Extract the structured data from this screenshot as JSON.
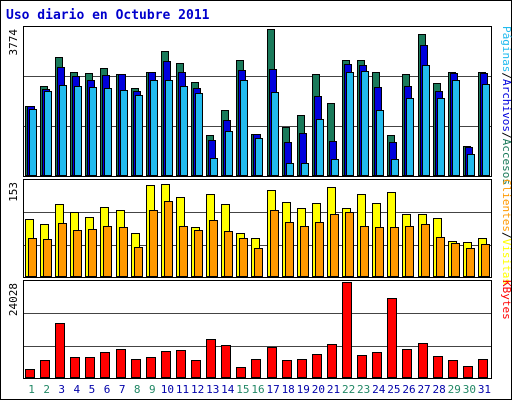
{
  "chart_data": {
    "type": "bar",
    "title": "Uso diario en Octubre 2011",
    "colors": {
      "title": "#0000cc",
      "accesos": "#1a7a5a",
      "archivos": "#0000dd",
      "paginas": "#22bbee",
      "visitas": "#ffff00",
      "clientes": "#ff9900",
      "kbytes": "#ff0000",
      "weekend_label": "#228866",
      "weekday_label": "#0000aa",
      "axis": "#000000",
      "grid": "#444444"
    },
    "categories": [
      "1",
      "2",
      "3",
      "4",
      "5",
      "6",
      "7",
      "8",
      "9",
      "10",
      "11",
      "12",
      "13",
      "14",
      "15",
      "16",
      "17",
      "18",
      "19",
      "20",
      "21",
      "22",
      "23",
      "24",
      "25",
      "26",
      "27",
      "28",
      "29",
      "30",
      "31"
    ],
    "weekend_days": [
      "1",
      "2",
      "8",
      "9",
      "15",
      "16",
      "22",
      "23",
      "29",
      "30"
    ],
    "panels": [
      {
        "id": "hits",
        "ymax_label": "3774",
        "ymax": 3774,
        "legend": [
          {
            "text": "Páginas",
            "color_key": "paginas"
          },
          {
            "text": "/",
            "color_key": "axis"
          },
          {
            "text": "Archivos",
            "color_key": "archivos"
          },
          {
            "text": "/",
            "color_key": "axis"
          },
          {
            "text": "Accesos",
            "color_key": "accesos"
          }
        ],
        "series": [
          {
            "name": "Accesos",
            "color_key": "accesos",
            "values": [
              1790,
              2300,
              3040,
              2640,
              2620,
              2760,
              2600,
              2240,
              2640,
              3190,
              2880,
              2400,
              1040,
              1680,
              2970,
              1070,
              3760,
              1250,
              1560,
              2600,
              1860,
              2960,
              2960,
              2640,
              1040,
              2600,
              3610,
              2360,
              2650,
              760,
              2660
            ]
          },
          {
            "name": "Archivos",
            "color_key": "archivos",
            "values": [
              1790,
              2230,
              2770,
              2540,
              2450,
              2580,
              2600,
              2160,
              2640,
              2930,
              2660,
              2250,
              920,
              1420,
              2700,
              1060,
              2720,
              870,
              1090,
              2040,
              890,
              2860,
              2830,
              2270,
              860,
              2300,
              3350,
              2180,
              2620,
              750,
              2630
            ]
          },
          {
            "name": "Páginas",
            "color_key": "paginas",
            "values": [
              1720,
              2160,
              2330,
              2300,
              2260,
              2250,
              2200,
              2060,
              2460,
              2450,
              2290,
              2120,
              460,
              1150,
              2450,
              980,
              2130,
              340,
              340,
              1450,
              430,
              2640,
              2690,
              1690,
              430,
              2000,
              2830,
              1980,
              2460,
              560,
              2350
            ]
          }
        ]
      },
      {
        "id": "visits",
        "ymax_label": "153",
        "ymax": 153,
        "legend": [
          {
            "text": "Clientes",
            "color_key": "clientes"
          },
          {
            "text": "/",
            "color_key": "axis"
          },
          {
            "text": "Visitas",
            "color_key": "visitas"
          }
        ],
        "series": [
          {
            "name": "Visitas",
            "color_key": "visitas",
            "values": [
              92,
              85,
              117,
              103,
              96,
              112,
              106,
              70,
              146,
              148,
              127,
              80,
              133,
              116,
              70,
              62,
              138,
              120,
              110,
              118,
              144,
              110,
              132,
              118,
              135,
              101,
              100,
              94,
              58,
              55,
              62
            ]
          },
          {
            "name": "Clientes",
            "color_key": "clientes",
            "values": [
              62,
              61,
              86,
              75,
              77,
              82,
              80,
              48,
              107,
              121,
              81,
              75,
              91,
              73,
              62,
              47,
              107,
              88,
              82,
              87,
              100,
              104,
              82,
              79,
              80,
              82,
              85,
              64,
              54,
              46,
              53
            ]
          }
        ]
      },
      {
        "id": "kbytes",
        "ymax_label": "24028",
        "ymax": 24028,
        "legend": [
          {
            "text": "KBytes",
            "color_key": "kbytes"
          }
        ],
        "series": [
          {
            "name": "KBytes",
            "color_key": "kbytes",
            "values": [
              2300,
              4600,
              13700,
              5200,
              5200,
              6500,
              7300,
              4800,
              5200,
              6700,
              7100,
              4500,
              9700,
              8200,
              2700,
              4700,
              7700,
              4500,
              4700,
              6000,
              8400,
              24028,
              5800,
              6400,
              19900,
              7300,
              8800,
              5600,
              4600,
              3000,
              4700
            ]
          }
        ]
      }
    ]
  }
}
